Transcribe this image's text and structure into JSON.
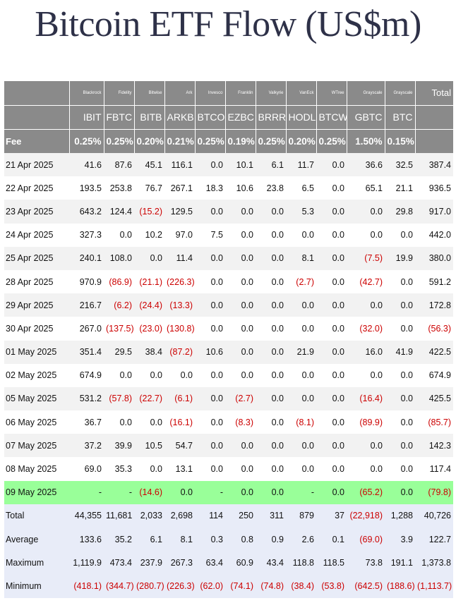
{
  "title": "Bitcoin ETF Flow (US$m)",
  "header": {
    "issuers": [
      "Blackrock",
      "Fidelity",
      "Bitwise",
      "Ark",
      "Invesco",
      "Franklin",
      "Valkyrie",
      "VanEck",
      "WTree",
      "Grayscale",
      "Grayscale"
    ],
    "total_label": "Total",
    "tickers": [
      "IBIT",
      "FBTC",
      "BITB",
      "ARKB",
      "BTCO",
      "EZBC",
      "BRRR",
      "HODL",
      "BTCW",
      "GBTC",
      "BTC"
    ],
    "fee_label": "Fee",
    "fees": [
      "0.25%",
      "0.25%",
      "0.20%",
      "0.21%",
      "0.25%",
      "0.19%",
      "0.25%",
      "0.20%",
      "0.25%",
      "1.50%",
      "0.15%"
    ]
  },
  "rows": [
    {
      "date": "21 Apr 2025",
      "values": [
        "41.6",
        "87.6",
        "45.1",
        "116.1",
        "0.0",
        "10.1",
        "6.1",
        "11.7",
        "0.0",
        "36.6",
        "32.5"
      ],
      "total": "387.4"
    },
    {
      "date": "22 Apr 2025",
      "values": [
        "193.5",
        "253.8",
        "76.7",
        "267.1",
        "18.3",
        "10.6",
        "23.8",
        "6.5",
        "0.0",
        "65.1",
        "21.1"
      ],
      "total": "936.5"
    },
    {
      "date": "23 Apr 2025",
      "values": [
        "643.2",
        "124.4",
        "(15.2)",
        "129.5",
        "0.0",
        "0.0",
        "0.0",
        "5.3",
        "0.0",
        "0.0",
        "29.8"
      ],
      "total": "917.0"
    },
    {
      "date": "24 Apr 2025",
      "values": [
        "327.3",
        "0.0",
        "10.2",
        "97.0",
        "7.5",
        "0.0",
        "0.0",
        "0.0",
        "0.0",
        "0.0",
        "0.0"
      ],
      "total": "442.0"
    },
    {
      "date": "25 Apr 2025",
      "values": [
        "240.1",
        "108.0",
        "0.0",
        "11.4",
        "0.0",
        "0.0",
        "0.0",
        "8.1",
        "0.0",
        "(7.5)",
        "19.9"
      ],
      "total": "380.0"
    },
    {
      "date": "28 Apr 2025",
      "values": [
        "970.9",
        "(86.9)",
        "(21.1)",
        "(226.3)",
        "0.0",
        "0.0",
        "0.0",
        "(2.7)",
        "0.0",
        "(42.7)",
        "0.0"
      ],
      "total": "591.2"
    },
    {
      "date": "29 Apr 2025",
      "values": [
        "216.7",
        "(6.2)",
        "(24.4)",
        "(13.3)",
        "0.0",
        "0.0",
        "0.0",
        "0.0",
        "0.0",
        "0.0",
        "0.0"
      ],
      "total": "172.8"
    },
    {
      "date": "30 Apr 2025",
      "values": [
        "267.0",
        "(137.5)",
        "(23.0)",
        "(130.8)",
        "0.0",
        "0.0",
        "0.0",
        "0.0",
        "0.0",
        "(32.0)",
        "0.0"
      ],
      "total": "(56.3)"
    },
    {
      "date": "01 May 2025",
      "values": [
        "351.4",
        "29.5",
        "38.4",
        "(87.2)",
        "10.6",
        "0.0",
        "0.0",
        "21.9",
        "0.0",
        "16.0",
        "41.9"
      ],
      "total": "422.5"
    },
    {
      "date": "02 May 2025",
      "values": [
        "674.9",
        "0.0",
        "0.0",
        "0.0",
        "0.0",
        "0.0",
        "0.0",
        "0.0",
        "0.0",
        "0.0",
        "0.0"
      ],
      "total": "674.9"
    },
    {
      "date": "05 May 2025",
      "values": [
        "531.2",
        "(57.8)",
        "(22.7)",
        "(6.1)",
        "0.0",
        "(2.7)",
        "0.0",
        "0.0",
        "0.0",
        "(16.4)",
        "0.0"
      ],
      "total": "425.5"
    },
    {
      "date": "06 May 2025",
      "values": [
        "36.7",
        "0.0",
        "0.0",
        "(16.1)",
        "0.0",
        "(8.3)",
        "0.0",
        "(8.1)",
        "0.0",
        "(89.9)",
        "0.0"
      ],
      "total": "(85.7)"
    },
    {
      "date": "07 May 2025",
      "values": [
        "37.2",
        "39.9",
        "10.5",
        "54.7",
        "0.0",
        "0.0",
        "0.0",
        "0.0",
        "0.0",
        "0.0",
        "0.0"
      ],
      "total": "142.3"
    },
    {
      "date": "08 May 2025",
      "values": [
        "69.0",
        "35.3",
        "0.0",
        "13.1",
        "0.0",
        "0.0",
        "0.0",
        "0.0",
        "0.0",
        "0.0",
        "0.0"
      ],
      "total": "117.4"
    },
    {
      "date": "09 May 2025",
      "values": [
        "-",
        "-",
        "(14.6)",
        "0.0",
        "-",
        "0.0",
        "0.0",
        "-",
        "0.0",
        "(65.2)",
        "0.0"
      ],
      "total": "(79.8)",
      "highlight": true
    }
  ],
  "summary": [
    {
      "label": "Total",
      "values": [
        "44,355",
        "11,681",
        "2,033",
        "2,698",
        "114",
        "250",
        "311",
        "879",
        "37",
        "(22,918)",
        "1,288"
      ],
      "total": "40,726"
    },
    {
      "label": "Average",
      "values": [
        "133.6",
        "35.2",
        "6.1",
        "8.1",
        "0.3",
        "0.8",
        "0.9",
        "2.6",
        "0.1",
        "(69.0)",
        "3.9"
      ],
      "total": "122.7"
    },
    {
      "label": "Maximum",
      "values": [
        "1,119.9",
        "473.4",
        "237.9",
        "267.3",
        "63.4",
        "60.9",
        "43.4",
        "118.8",
        "118.5",
        "73.8",
        "191.1"
      ],
      "total": "1,373.8"
    },
    {
      "label": "Minimum",
      "values": [
        "(418.1)",
        "(344.7)",
        "(280.7)",
        "(226.3)",
        "(62.0)",
        "(74.1)",
        "(74.8)",
        "(38.4)",
        "(53.8)",
        "(642.5)",
        "(188.6)"
      ],
      "total": "(1,113.7)"
    }
  ],
  "colors": {
    "header_bg": "#8a8a8a",
    "negative": "#cc0000",
    "highlight_row": "#99ff99",
    "summary_bg": "#e8ecf8",
    "title": "#2e3148"
  }
}
